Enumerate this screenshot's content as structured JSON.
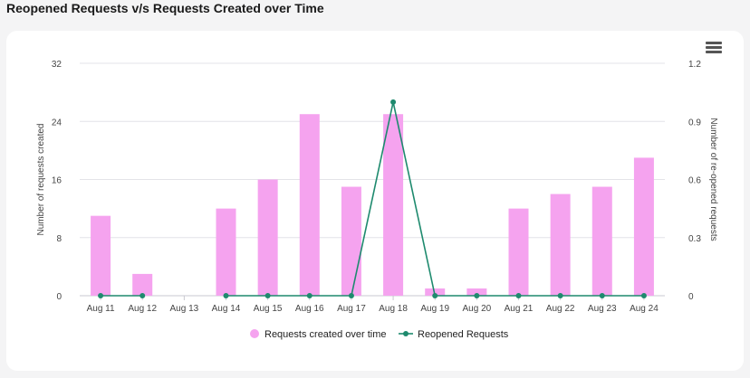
{
  "page": {
    "title": "Reopened Requests v/s Requests Created over Time"
  },
  "menu": {
    "icon": "hamburger-menu-icon"
  },
  "colors": {
    "bar": "#f5a3ef",
    "line": "#1e8a6e",
    "grid": "#e3e3e8",
    "axis_text": "#444444"
  },
  "chart_data": {
    "type": "bar+line",
    "title": "Reopened Requests v/s Requests Created over Time",
    "categories": [
      "Aug 11",
      "Aug 12",
      "Aug 13",
      "Aug 14",
      "Aug 15",
      "Aug 16",
      "Aug 17",
      "Aug 18",
      "Aug 19",
      "Aug 20",
      "Aug 21",
      "Aug 22",
      "Aug 23",
      "Aug 24"
    ],
    "series": [
      {
        "name": "Requests created over time",
        "type": "bar",
        "axis": "left",
        "values": [
          11,
          3,
          0,
          12,
          16,
          25,
          15,
          25,
          1,
          1,
          12,
          14,
          15,
          19
        ]
      },
      {
        "name": "Reopened Requests",
        "type": "line",
        "axis": "right",
        "values": [
          0,
          0,
          null,
          0,
          0,
          0,
          0,
          1,
          0,
          0,
          0,
          0,
          0,
          0
        ]
      }
    ],
    "ylabel_left": "Number of requests created",
    "ylabel_right": "Number of re-opened requests",
    "ylim_left": [
      0,
      32
    ],
    "ylim_right": [
      0,
      1.2
    ],
    "yticks_left": [
      "0",
      "8",
      "16",
      "24",
      "32"
    ],
    "yticks_right": [
      "0",
      "0.3",
      "0.6",
      "0.9",
      "1.2"
    ],
    "legend": {
      "position": "bottom-center",
      "items": [
        "Requests created over time",
        "Reopened Requests"
      ]
    },
    "grid": true
  }
}
